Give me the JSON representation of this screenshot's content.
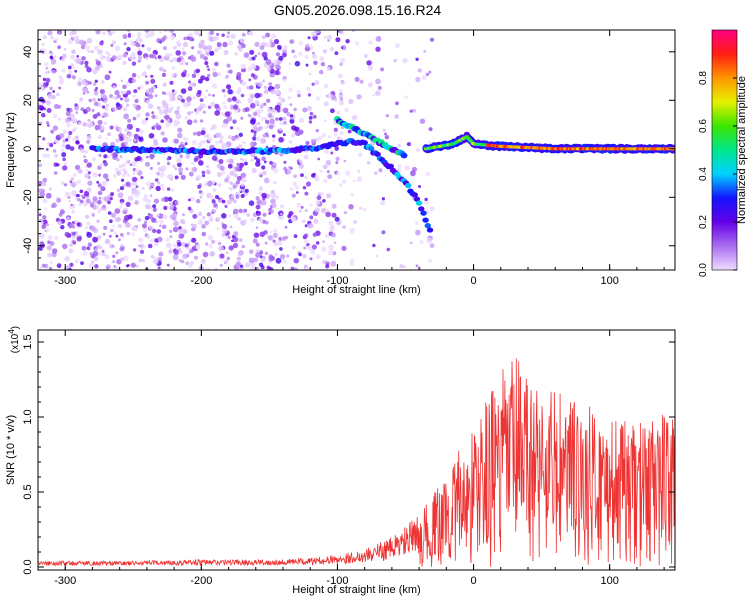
{
  "chart_data": [
    {
      "type": "heatmap",
      "title": "GN05.2026.098.15.16.R24",
      "xlabel": "Height of straight line (km)",
      "ylabel": "Frequency (Hz)",
      "xlim": [
        -320,
        148
      ],
      "ylim": [
        -50,
        49
      ],
      "x_ticks": [
        -300,
        -200,
        -100,
        0,
        100
      ],
      "x_tick_labels": [
        "-300",
        "-200",
        "-100",
        "0",
        "100"
      ],
      "y_ticks": [
        -40,
        -20,
        0,
        20,
        40
      ],
      "y_tick_labels": [
        "-40",
        "-20",
        "0",
        "20",
        "40"
      ],
      "colorbar": {
        "label": "Normalized spectral amplitude",
        "range": [
          0,
          1
        ],
        "ticks": [
          0.0,
          0.2,
          0.4,
          0.6,
          0.8
        ],
        "tick_labels": [
          "0.0",
          "0.2",
          "0.4",
          "0.6",
          "0.8"
        ]
      },
      "ridges": [
        {
          "name": "main",
          "points": [
            [
              -280,
              0
            ],
            [
              -200,
              -1
            ],
            [
              -150,
              -1
            ],
            [
              -120,
              0
            ],
            [
              -100,
              2
            ],
            [
              -90,
              3
            ],
            [
              -80,
              2
            ],
            [
              -70,
              -3
            ],
            [
              -60,
              -8
            ],
            [
              -50,
              -14
            ],
            [
              -40,
              -22
            ],
            [
              -32,
              -34
            ]
          ]
        },
        {
          "name": "upper",
          "points": [
            [
              -100,
              12
            ],
            [
              -90,
              9
            ],
            [
              -80,
              6
            ],
            [
              -70,
              3
            ],
            [
              -60,
              0
            ],
            [
              -50,
              -3
            ]
          ]
        },
        {
          "name": "tail",
          "points": [
            [
              -35,
              0
            ],
            [
              -25,
              1
            ],
            [
              -15,
              2
            ],
            [
              -5,
              5
            ],
            [
              0,
              2
            ],
            [
              20,
              1
            ],
            [
              60,
              0
            ],
            [
              100,
              0
            ],
            [
              148,
              0
            ]
          ]
        }
      ]
    },
    {
      "type": "line",
      "xlabel": "Height of straight line (km)",
      "ylabel": "SNR (10 * v/v)",
      "multiplier_label": "(x10",
      "multiplier_exp": "4",
      "xlim": [
        -320,
        148
      ],
      "ylim": [
        -0.02,
        1.58
      ],
      "x_ticks": [
        -300,
        -200,
        -100,
        0,
        100
      ],
      "x_tick_labels": [
        "-300",
        "-200",
        "-100",
        "0",
        "100"
      ],
      "y_ticks": [
        0.0,
        0.5,
        1.0,
        1.5
      ],
      "y_tick_labels": [
        "0.0",
        "0.5",
        "1.0",
        "1.5"
      ],
      "series": [
        {
          "name": "SNR",
          "color": "#ee3333",
          "envelope": [
            [
              -320,
              0.04
            ],
            [
              -250,
              0.04
            ],
            [
              -200,
              0.05
            ],
            [
              -150,
              0.05
            ],
            [
              -120,
              0.06
            ],
            [
              -100,
              0.08
            ],
            [
              -80,
              0.12
            ],
            [
              -60,
              0.2
            ],
            [
              -40,
              0.35
            ],
            [
              -25,
              0.55
            ],
            [
              -10,
              0.8
            ],
            [
              0,
              0.95
            ],
            [
              10,
              1.15
            ],
            [
              20,
              1.3
            ],
            [
              30,
              1.45
            ],
            [
              40,
              1.3
            ],
            [
              60,
              1.2
            ],
            [
              80,
              1.1
            ],
            [
              100,
              1.0
            ],
            [
              120,
              0.95
            ],
            [
              148,
              1.1
            ]
          ]
        }
      ]
    }
  ]
}
